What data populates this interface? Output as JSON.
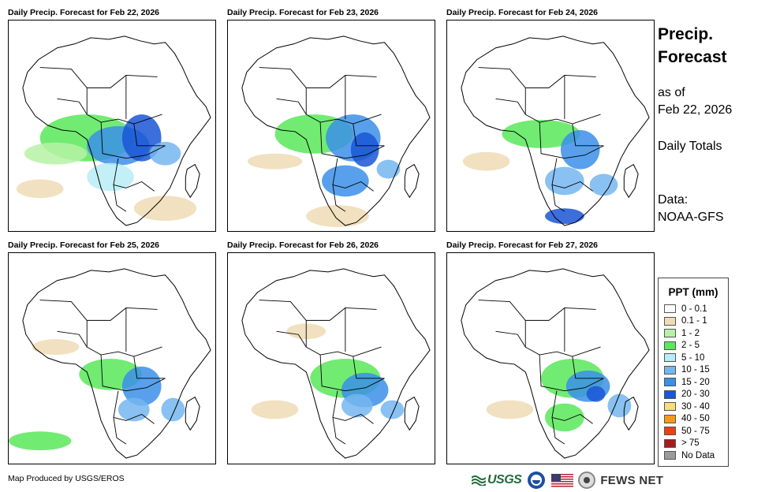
{
  "panels": [
    {
      "title": "Daily Precip. Forecast for Feb 22, 2026"
    },
    {
      "title": "Daily Precip. Forecast for Feb 23, 2026"
    },
    {
      "title": "Daily Precip. Forecast for Feb 24, 2026"
    },
    {
      "title": "Daily Precip. Forecast for Feb 25, 2026"
    },
    {
      "title": "Daily Precip. Forecast for Feb 26, 2026"
    },
    {
      "title": "Daily Precip. Forecast for Feb 27, 2026"
    }
  ],
  "side": {
    "title_line1": "Precip.",
    "title_line2": "Forecast",
    "asof_line1": "as of",
    "asof_line2": "Feb 22, 2026",
    "totals": "Daily Totals",
    "data_line1": "Data:",
    "data_line2": "NOAA-GFS"
  },
  "legend": {
    "title": "PPT (mm)",
    "items": [
      {
        "label": "0 - 0.1",
        "color": "#ffffff"
      },
      {
        "label": "0.1 - 1",
        "color": "#efdcb5"
      },
      {
        "label": "1 - 2",
        "color": "#b6f2a6"
      },
      {
        "label": "2 - 5",
        "color": "#59e85a"
      },
      {
        "label": "5 - 10",
        "color": "#b8ecf6"
      },
      {
        "label": "10 - 15",
        "color": "#74b6f0"
      },
      {
        "label": "15 - 20",
        "color": "#3b8fe8"
      },
      {
        "label": "20 - 30",
        "color": "#1a56d6"
      },
      {
        "label": "30 - 40",
        "color": "#f7de7a"
      },
      {
        "label": "40 - 50",
        "color": "#f59a16"
      },
      {
        "label": "50 - 75",
        "color": "#ef3e14"
      },
      {
        "label": "> 75",
        "color": "#a51c1c"
      },
      {
        "label": "No Data",
        "color": "#9a9a9a"
      }
    ]
  },
  "footer": {
    "credit": "Map Produced by USGS/EROS",
    "usgs": "USGS",
    "fews": "FEWS NET"
  }
}
